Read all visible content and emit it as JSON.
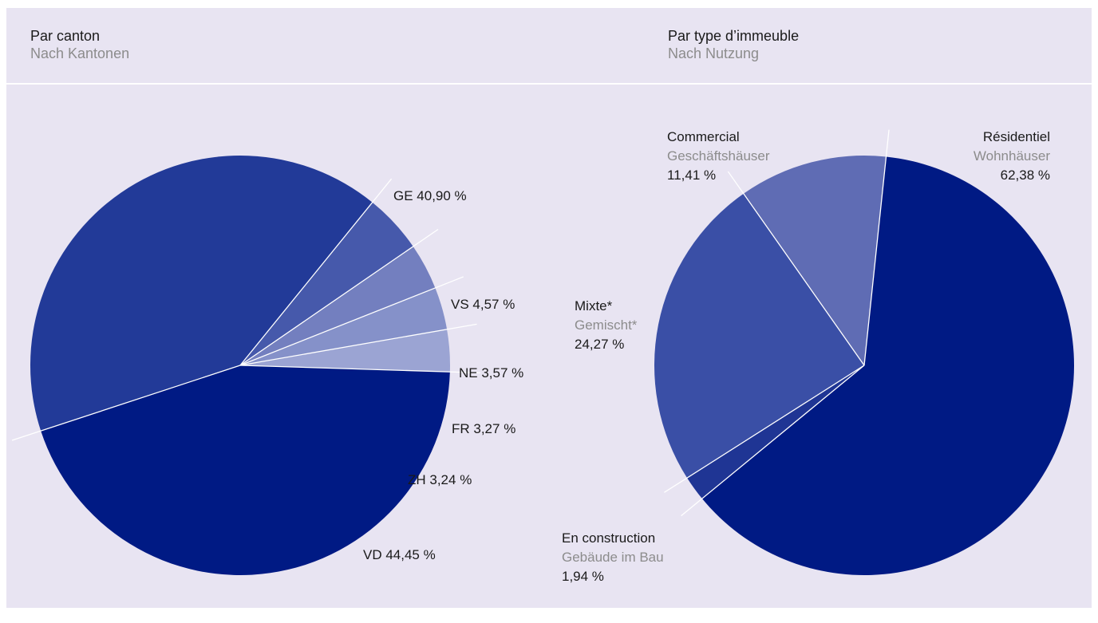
{
  "left_header": {
    "title": "Par canton",
    "subtitle": "Nach Kantonen"
  },
  "right_header": {
    "title": "Par type d’immeuble",
    "subtitle": "Nach Nutzung"
  },
  "colors": {
    "panel": "#e8e4f2",
    "divider": "#ffffff",
    "label_main": "#1a1a1a",
    "label_sub": "#8c8c8c"
  },
  "chart_data": [
    {
      "type": "pie",
      "title": "Par canton",
      "subtitle": "Nach Kantonen",
      "slices": [
        {
          "label": "GE 40,90 %",
          "value": 40.9,
          "color": "#223a98"
        },
        {
          "label": "VS 4,57 %",
          "value": 4.57,
          "color": "#4659ab"
        },
        {
          "label": "NE 3,57 %",
          "value": 3.57,
          "color": "#737fbf"
        },
        {
          "label": "FR 3,27 %",
          "value": 3.27,
          "color": "#8591c9"
        },
        {
          "label": "ZH 3,24 %",
          "value": 3.24,
          "color": "#9ba4d3"
        },
        {
          "label": "VD 44,45 %",
          "value": 44.45,
          "color": "#001a84"
        }
      ]
    },
    {
      "type": "pie",
      "title": "Par type d’immeuble",
      "subtitle": "Nach Nutzung",
      "slices": [
        {
          "label": "Résidentiel",
          "sublabel": "Wohnhäuser",
          "value_label": "62,38 %",
          "value": 62.38,
          "color": "#001a84"
        },
        {
          "label": "En construction",
          "sublabel": "Gebäude im Bau",
          "value_label": "1,94 %",
          "value": 1.94,
          "color": "#1f3594"
        },
        {
          "label": "Mixte*",
          "sublabel": "Gemischt*",
          "value_label": "24,27 %",
          "value": 24.27,
          "color": "#3a4fa6"
        },
        {
          "label": "Commercial",
          "sublabel": "Geschäftshäuser",
          "value_label": "11,41 %",
          "value": 11.41,
          "color": "#5f6cb4"
        }
      ]
    }
  ]
}
